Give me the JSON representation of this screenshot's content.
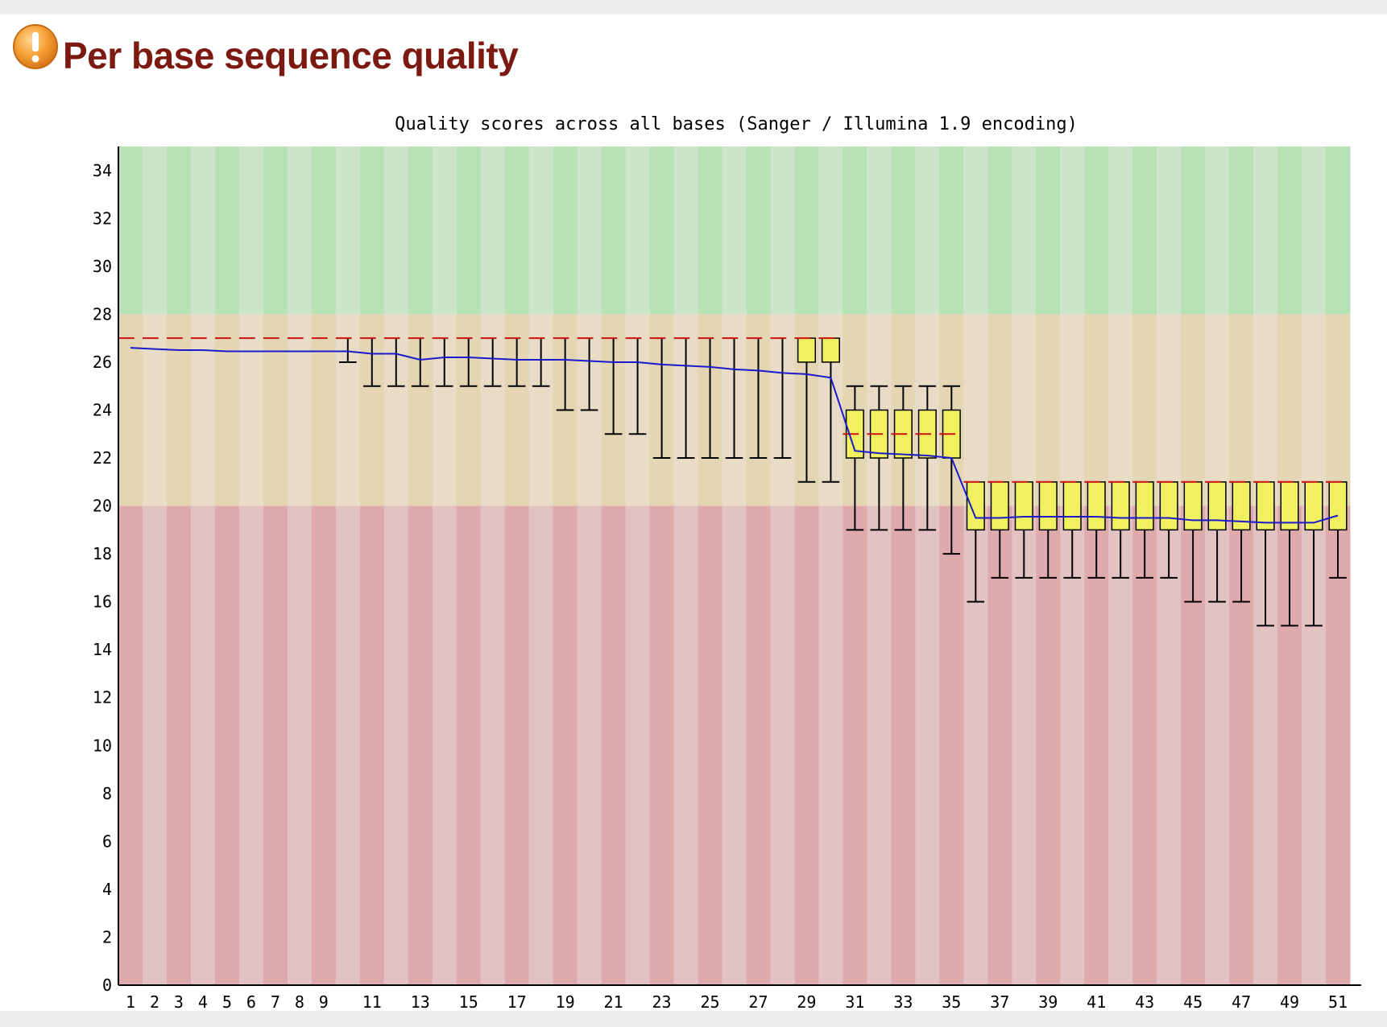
{
  "header": {
    "title": "Per base sequence quality",
    "icon": "warning-icon"
  },
  "colors": {
    "title": "#7c1a12",
    "good_band": [
      "#b8e2b6",
      "#cce4c8"
    ],
    "warn_band": [
      "#e4d6b4",
      "#e8dcc6"
    ],
    "bad_band": [
      "#deaaac",
      "#e2c2c2"
    ],
    "box_fill": "#f0f060",
    "median": "#cc1111",
    "mean": "#1a1acc"
  },
  "chart_data": {
    "type": "box",
    "title": "Quality scores across all bases (Sanger / Illumina 1.9 encoding)",
    "xlabel": "",
    "ylabel": "",
    "ylim": [
      0,
      35
    ],
    "yticks": [
      "0",
      "2",
      "4",
      "6",
      "8",
      "10",
      "12",
      "14",
      "16",
      "18",
      "20",
      "22",
      "24",
      "26",
      "28",
      "30",
      "32",
      "34"
    ],
    "xticks": [
      "1",
      "2",
      "3",
      "4",
      "5",
      "6",
      "7",
      "8",
      "9",
      "11",
      "13",
      "15",
      "17",
      "19",
      "21",
      "23",
      "25",
      "27",
      "29",
      "31",
      "33",
      "35",
      "37",
      "39",
      "41",
      "43",
      "45",
      "47",
      "49",
      "51"
    ],
    "bands": {
      "bad": [
        0,
        20
      ],
      "warn": [
        20,
        28
      ],
      "good": [
        28,
        35
      ]
    },
    "positions": [
      1,
      2,
      3,
      4,
      5,
      6,
      7,
      8,
      9,
      10,
      11,
      12,
      13,
      14,
      15,
      16,
      17,
      18,
      19,
      20,
      21,
      22,
      23,
      24,
      25,
      26,
      27,
      28,
      29,
      30,
      31,
      32,
      33,
      34,
      35,
      36,
      37,
      38,
      39,
      40,
      41,
      42,
      43,
      44,
      45,
      46,
      47,
      48,
      49,
      50,
      51
    ],
    "median": [
      27,
      27,
      27,
      27,
      27,
      27,
      27,
      27,
      27,
      27,
      27,
      27,
      27,
      27,
      27,
      27,
      27,
      27,
      27,
      27,
      27,
      27,
      27,
      27,
      27,
      27,
      27,
      27,
      27,
      27,
      23,
      23,
      23,
      23,
      23,
      21,
      21,
      21,
      21,
      21,
      21,
      21,
      21,
      21,
      21,
      21,
      21,
      21,
      21,
      21,
      21
    ],
    "q1": [
      27,
      27,
      27,
      27,
      27,
      27,
      27,
      27,
      27,
      27,
      27,
      27,
      27,
      27,
      27,
      27,
      27,
      27,
      27,
      27,
      27,
      27,
      27,
      27,
      27,
      27,
      27,
      27,
      26,
      26,
      22,
      22,
      22,
      22,
      22,
      19,
      19,
      19,
      19,
      19,
      19,
      19,
      19,
      19,
      19,
      19,
      19,
      19,
      19,
      19,
      19
    ],
    "q3": [
      27,
      27,
      27,
      27,
      27,
      27,
      27,
      27,
      27,
      27,
      27,
      27,
      27,
      27,
      27,
      27,
      27,
      27,
      27,
      27,
      27,
      27,
      27,
      27,
      27,
      27,
      27,
      27,
      27,
      27,
      24,
      24,
      24,
      24,
      24,
      21,
      21,
      21,
      21,
      21,
      21,
      21,
      21,
      21,
      21,
      21,
      21,
      21,
      21,
      21,
      21
    ],
    "whisker_low": [
      27,
      27,
      27,
      27,
      27,
      27,
      27,
      27,
      27,
      26,
      25,
      25,
      25,
      25,
      25,
      25,
      25,
      25,
      24,
      24,
      23,
      23,
      22,
      22,
      22,
      22,
      22,
      22,
      21,
      21,
      19,
      19,
      19,
      19,
      18,
      16,
      17,
      17,
      17,
      17,
      17,
      17,
      17,
      17,
      16,
      16,
      16,
      15,
      15,
      15,
      17
    ],
    "whisker_high": [
      27,
      27,
      27,
      27,
      27,
      27,
      27,
      27,
      27,
      27,
      27,
      27,
      27,
      27,
      27,
      27,
      27,
      27,
      27,
      27,
      27,
      27,
      27,
      27,
      27,
      27,
      27,
      27,
      27,
      27,
      25,
      25,
      25,
      25,
      25,
      21,
      21,
      21,
      21,
      21,
      21,
      21,
      21,
      21,
      21,
      21,
      21,
      21,
      21,
      21,
      21
    ],
    "mean": [
      26.6,
      26.55,
      26.5,
      26.5,
      26.45,
      26.45,
      26.45,
      26.45,
      26.45,
      26.45,
      26.35,
      26.35,
      26.1,
      26.2,
      26.2,
      26.15,
      26.1,
      26.1,
      26.1,
      26.05,
      26.0,
      26.0,
      25.9,
      25.85,
      25.8,
      25.7,
      25.65,
      25.55,
      25.5,
      25.35,
      22.3,
      22.2,
      22.15,
      22.1,
      22.0,
      19.5,
      19.5,
      19.55,
      19.55,
      19.55,
      19.55,
      19.5,
      19.5,
      19.5,
      19.4,
      19.4,
      19.35,
      19.3,
      19.3,
      19.3,
      19.6
    ]
  }
}
